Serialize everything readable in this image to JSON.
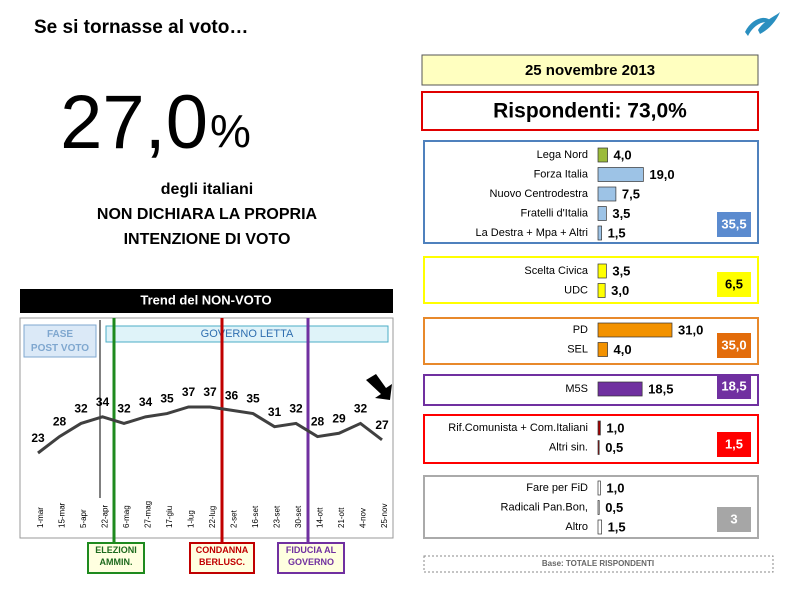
{
  "title": "Se si tornasse al voto…",
  "big_number": "27,0",
  "big_unit": "%",
  "subtitle_lines": [
    "degli italiani",
    "NON DICHIARA LA PROPRIA",
    "INTENZIONE DI VOTO"
  ],
  "date": "25 novembre 2013",
  "respondents": "Rispondenti: 73,0%",
  "base": "Base: TOTALE RISPONDENTI",
  "chart_data": [
    {
      "type": "line",
      "title": "Trend del NON-VOTO",
      "color": "#404040",
      "categories": [
        "1-mar",
        "15-mar",
        "5-apr",
        "22-apr",
        "6-mag",
        "27-mag",
        "17-giu",
        "1-lug",
        "22-lug",
        "2-set",
        "16-set",
        "23-set",
        "30-set",
        "14-ott",
        "21-ott",
        "4-nov",
        "25-nov"
      ],
      "values": [
        23,
        28,
        32,
        34,
        32,
        34,
        35,
        37,
        37,
        36,
        35,
        31,
        32,
        28,
        29,
        32,
        27
      ],
      "annotations": [
        "FASE POST VOTO",
        "GOVERNO LETTA",
        "ELEZIONI AMMIN.",
        "CONDANNA BERLUSC.",
        "FIDUCIA AL GOVERNO"
      ]
    },
    {
      "type": "bar",
      "groups": [
        {
          "border": "#4f81bd",
          "total": 35.5,
          "total_label": "35,5",
          "total_color": "#5b8bcf",
          "total_text": "#ffffff",
          "categories": [
            "Lega Nord",
            "Forza Italia",
            "Nuovo Centrodestra",
            "Fratelli d'Italia",
            "La Destra + Mpa + Altri"
          ],
          "values": [
            4.0,
            19.0,
            7.5,
            3.5,
            1.5
          ],
          "value_labels": [
            "4,0",
            "19,0",
            "7,5",
            "3,5",
            "1,5"
          ],
          "colors": [
            "#9bbb3a",
            "#9dc3e6",
            "#9dc3e6",
            "#9dc3e6",
            "#9dc3e6"
          ]
        },
        {
          "border": "#ffff00",
          "total": 6.5,
          "total_label": "6,5",
          "total_color": "#ffff00",
          "total_text": "#000000",
          "categories": [
            "Scelta Civica",
            "UDC"
          ],
          "values": [
            3.5,
            3.0
          ],
          "value_labels": [
            "3,5",
            "3,0"
          ],
          "colors": [
            "#ffff00",
            "#ffff00"
          ]
        },
        {
          "border": "#e8892b",
          "total": 35.0,
          "total_label": "35,0",
          "total_color": "#e36c0a",
          "total_text": "#ffffff",
          "categories": [
            "PD",
            "SEL"
          ],
          "values": [
            31.0,
            4.0
          ],
          "value_labels": [
            "31,0",
            "4,0"
          ],
          "colors": [
            "#f39200",
            "#f39200"
          ]
        },
        {
          "border": "#7030a0",
          "total": 18.5,
          "total_label": "18,5",
          "total_color": "#7030a0",
          "total_text": "#ffffff",
          "categories": [
            "M5S"
          ],
          "values": [
            18.5
          ],
          "value_labels": [
            "18,5"
          ],
          "colors": [
            "#7030a0"
          ]
        },
        {
          "border": "#ff0000",
          "total": 1.5,
          "total_label": "1,5",
          "total_color": "#ff0000",
          "total_text": "#ffffff",
          "categories": [
            "Rif.Comunista + Com.Italiani",
            "Altri sin."
          ],
          "values": [
            1.0,
            0.5
          ],
          "value_labels": [
            "1,0",
            "0,5"
          ],
          "colors": [
            "#a00000",
            "#a00000"
          ]
        },
        {
          "border": "#aaaaaa",
          "total": 3,
          "total_color": "#a6a6a6",
          "total_text": "#ffffff",
          "categories": [
            "Fare per FiD",
            "Radicali Pan.Bon,",
            "Altro"
          ],
          "values": [
            1.0,
            0.5,
            1.5
          ],
          "value_labels": [
            "1,0",
            "0,5",
            "1,5"
          ],
          "colors": [
            "#ffffff",
            "#ffffff",
            "#ffffff"
          ]
        }
      ]
    }
  ]
}
